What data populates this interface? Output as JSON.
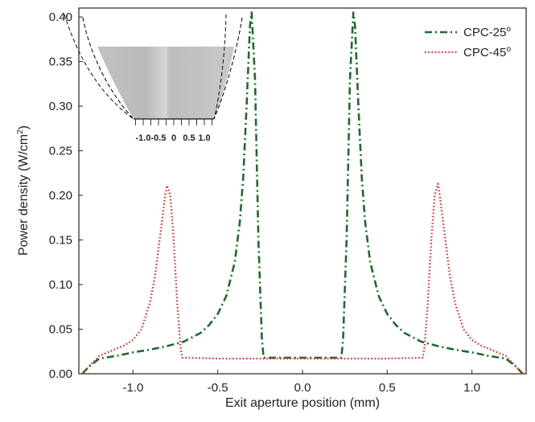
{
  "chart_data": {
    "type": "line",
    "xlabel": "Exit aperture position (mm)",
    "ylabel_main": "Power density (W/cm",
    "ylabel_sup": "2",
    "ylabel_close": ")",
    "xlim": [
      -1.32,
      1.32
    ],
    "ylim": [
      0,
      0.41
    ],
    "x_ticks": [
      -1.0,
      -0.5,
      0.0,
      0.5,
      1.0
    ],
    "x_tick_labels": [
      "-1.0",
      "-0.5",
      "0.0",
      "0.5",
      "1.0"
    ],
    "y_ticks": [
      0,
      0.05,
      0.1,
      0.15,
      0.2,
      0.25,
      0.3,
      0.35,
      0.4
    ],
    "y_tick_labels": [
      "0.00",
      "0.05",
      "0.10",
      "0.15",
      "0.20",
      "0.25",
      "0.30",
      "0.35",
      "0.40"
    ],
    "legend_position": "top-right",
    "series": [
      {
        "name_main": "CPC-25",
        "name_sup": "o",
        "color": "#1f6b2a",
        "style": "dash-dot",
        "points": [
          [
            -1.3,
            0.0
          ],
          [
            -1.26,
            0.008
          ],
          [
            -1.2,
            0.017
          ],
          [
            -1.1,
            0.02
          ],
          [
            -1.0,
            0.024
          ],
          [
            -0.9,
            0.027
          ],
          [
            -0.8,
            0.031
          ],
          [
            -0.7,
            0.036
          ],
          [
            -0.6,
            0.046
          ],
          [
            -0.55,
            0.055
          ],
          [
            -0.5,
            0.067
          ],
          [
            -0.45,
            0.087
          ],
          [
            -0.4,
            0.125
          ],
          [
            -0.37,
            0.17
          ],
          [
            -0.35,
            0.22
          ],
          [
            -0.33,
            0.3
          ],
          [
            -0.31,
            0.39
          ],
          [
            -0.3,
            0.405
          ],
          [
            -0.28,
            0.33
          ],
          [
            -0.26,
            0.15
          ],
          [
            -0.24,
            0.04
          ],
          [
            -0.23,
            0.018
          ],
          [
            -0.1,
            0.018
          ],
          [
            0.0,
            0.018
          ],
          [
            0.1,
            0.018
          ],
          [
            0.23,
            0.018
          ],
          [
            0.24,
            0.04
          ],
          [
            0.26,
            0.15
          ],
          [
            0.28,
            0.33
          ],
          [
            0.3,
            0.405
          ],
          [
            0.31,
            0.39
          ],
          [
            0.33,
            0.3
          ],
          [
            0.35,
            0.22
          ],
          [
            0.37,
            0.17
          ],
          [
            0.4,
            0.125
          ],
          [
            0.45,
            0.087
          ],
          [
            0.5,
            0.067
          ],
          [
            0.55,
            0.055
          ],
          [
            0.6,
            0.046
          ],
          [
            0.7,
            0.036
          ],
          [
            0.8,
            0.031
          ],
          [
            0.9,
            0.027
          ],
          [
            1.0,
            0.024
          ],
          [
            1.1,
            0.02
          ],
          [
            1.2,
            0.017
          ],
          [
            1.26,
            0.008
          ],
          [
            1.3,
            0.0
          ]
        ]
      },
      {
        "name_main": "CPC-45",
        "name_sup": "o",
        "color": "#ee2222",
        "style": "dotted",
        "points": [
          [
            -1.3,
            0.0
          ],
          [
            -1.25,
            0.01
          ],
          [
            -1.2,
            0.02
          ],
          [
            -1.1,
            0.028
          ],
          [
            -1.05,
            0.032
          ],
          [
            -1.0,
            0.038
          ],
          [
            -0.95,
            0.05
          ],
          [
            -0.9,
            0.08
          ],
          [
            -0.87,
            0.11
          ],
          [
            -0.85,
            0.14
          ],
          [
            -0.83,
            0.17
          ],
          [
            -0.81,
            0.2
          ],
          [
            -0.8,
            0.211
          ],
          [
            -0.78,
            0.2
          ],
          [
            -0.76,
            0.15
          ],
          [
            -0.74,
            0.08
          ],
          [
            -0.72,
            0.03
          ],
          [
            -0.71,
            0.018
          ],
          [
            -0.5,
            0.017
          ],
          [
            0.0,
            0.017
          ],
          [
            0.5,
            0.017
          ],
          [
            0.71,
            0.018
          ],
          [
            0.72,
            0.03
          ],
          [
            0.74,
            0.08
          ],
          [
            0.76,
            0.15
          ],
          [
            0.78,
            0.2
          ],
          [
            0.8,
            0.213
          ],
          [
            0.81,
            0.2
          ],
          [
            0.83,
            0.17
          ],
          [
            0.85,
            0.14
          ],
          [
            0.87,
            0.11
          ],
          [
            0.9,
            0.08
          ],
          [
            0.95,
            0.05
          ],
          [
            1.0,
            0.038
          ],
          [
            1.05,
            0.032
          ],
          [
            1.1,
            0.028
          ],
          [
            1.2,
            0.02
          ],
          [
            1.25,
            0.01
          ],
          [
            1.3,
            0.0
          ]
        ]
      }
    ],
    "inset": {
      "tick_labels": [
        "-1.0",
        "-0.5",
        "0",
        "0.5",
        "1.0"
      ],
      "tick_values": [
        -1.0,
        -0.5,
        0,
        0.5,
        1.0
      ]
    }
  }
}
